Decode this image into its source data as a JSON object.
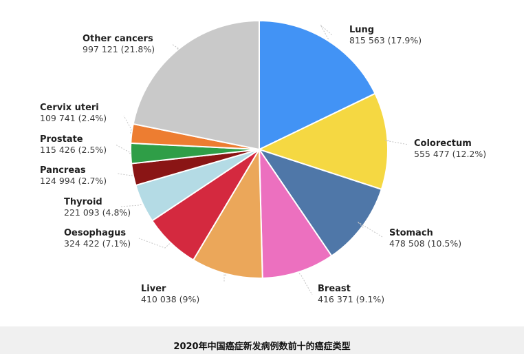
{
  "caption": "2020年中国癌症新发病例数前十的癌症类型",
  "chart_data": {
    "type": "pie",
    "title": "",
    "slices": [
      {
        "name": "Lung",
        "label": "815 563 (17.9%)",
        "value": 815563,
        "percent": 17.9,
        "color": "#4293f5"
      },
      {
        "name": "Colorectum",
        "label": "555 477 (12.2%)",
        "value": 555477,
        "percent": 12.2,
        "color": "#f5d842"
      },
      {
        "name": "Stomach",
        "label": "478 508 (10.5%)",
        "value": 478508,
        "percent": 10.5,
        "color": "#4f77a8"
      },
      {
        "name": "Breast",
        "label": "416 371 (9.1%)",
        "value": 416371,
        "percent": 9.1,
        "color": "#ec70bf"
      },
      {
        "name": "Liver",
        "label": "410 038 (9%)",
        "value": 410038,
        "percent": 9.0,
        "color": "#eba75a"
      },
      {
        "name": "Oesophagus",
        "label": "324 422 (7.1%)",
        "value": 324422,
        "percent": 7.1,
        "color": "#d4293f"
      },
      {
        "name": "Thyroid",
        "label": "221 093 (4.8%)",
        "value": 221093,
        "percent": 4.8,
        "color": "#b4dbe5"
      },
      {
        "name": "Pancreas",
        "label": "124 994 (2.7%)",
        "value": 124994,
        "percent": 2.7,
        "color": "#8a1515"
      },
      {
        "name": "Prostate",
        "label": "115 426 (2.5%)",
        "value": 115426,
        "percent": 2.5,
        "color": "#2f9e47"
      },
      {
        "name": "Cervix uteri",
        "label": "109 741 (2.4%)",
        "value": 109741,
        "percent": 2.4,
        "color": "#ed7d31"
      },
      {
        "name": "Other cancers",
        "label": "997 121 (21.8%)",
        "value": 997121,
        "percent": 21.8,
        "color": "#c9c9c9"
      }
    ]
  }
}
